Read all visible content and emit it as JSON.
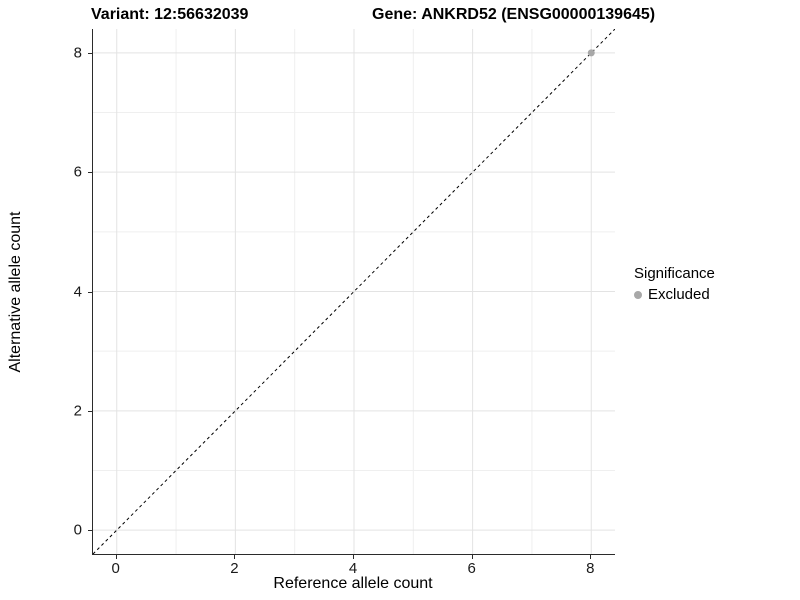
{
  "header": {
    "variant_title": "Variant: 12:56632039",
    "gene_title": "Gene: ANKRD52 (ENSG00000139645)"
  },
  "chart_data": {
    "type": "scatter",
    "title": "Variant: 12:56632039   Gene: ANKRD52 (ENSG00000139645)",
    "xlabel": "Reference allele count",
    "ylabel": "Alternative allele count",
    "xlim": [
      -0.4,
      8.4
    ],
    "ylim": [
      -0.4,
      8.4
    ],
    "x_ticks": [
      0,
      2,
      4,
      6,
      8
    ],
    "y_ticks": [
      0,
      2,
      4,
      6,
      8
    ],
    "grid": {
      "major": [
        0,
        2,
        4,
        6,
        8
      ],
      "minor": [
        1,
        3,
        5,
        7
      ],
      "major_color": "#e3e3e3",
      "minor_color": "#efefef"
    },
    "identity_line": {
      "style": "dashed",
      "color": "#000000",
      "from": [
        -0.4,
        -0.4
      ],
      "to": [
        8.4,
        8.4
      ]
    },
    "series": [
      {
        "name": "Excluded",
        "color": "#a8a8a8",
        "points": [
          [
            8,
            8
          ]
        ]
      }
    ],
    "legend": {
      "position": "right",
      "title": "Significance",
      "entries": [
        {
          "label": "Excluded",
          "color": "#a8a8a8"
        }
      ]
    }
  },
  "colors": {
    "axis_line": "#2b2b2b",
    "tick_text": "#1a1a1a",
    "background": "#ffffff",
    "point_gray": "#a8a8a8"
  }
}
